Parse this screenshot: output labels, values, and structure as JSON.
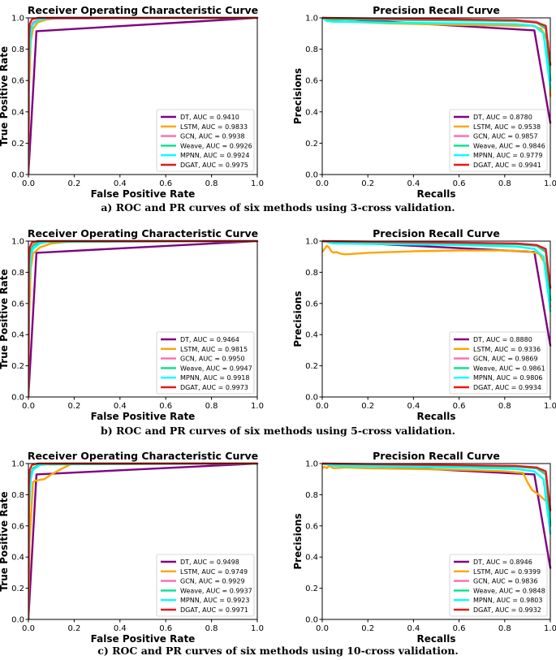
{
  "captions": [
    "a) ROC and PR curves of six methods using 3-cross validation.",
    "b) ROC and PR curves of six methods using 5-cross validation.",
    "c) ROC and PR curves of six methods using 10-cross validation."
  ],
  "colors": {
    "DT": "#800080",
    "LSTM": "#FFA500",
    "GCN": "#FF69B4",
    "Weave": "#00E38C",
    "MPNN": "#00FFFF",
    "DGAT": "#E41A1C"
  },
  "chart_data": [
    {
      "type": "line",
      "title": "Receiver Operating Characteristic Curve",
      "xlabel": "False Positive Rate",
      "ylabel": "True Positive Rate",
      "xlim": [
        0,
        1
      ],
      "ylim": [
        0,
        1
      ],
      "xticks": [
        "0.0",
        "0.2",
        "0.4",
        "0.6",
        "0.8",
        "1.0"
      ],
      "yticks": [
        "0.0",
        "0.2",
        "0.4",
        "0.6",
        "0.8",
        "1.0"
      ],
      "legend_position": "lower-right",
      "series": [
        {
          "name": "DT",
          "legend": "DT, AUC = 0.9410",
          "x": [
            0,
            0.035,
            1
          ],
          "y": [
            0,
            0.915,
            1
          ]
        },
        {
          "name": "LSTM",
          "legend": "LSTM, AUC = 0.9833",
          "x": [
            0,
            0.003,
            0.01,
            0.02,
            0.04,
            0.08,
            0.15,
            1
          ],
          "y": [
            0,
            0.55,
            0.85,
            0.93,
            0.97,
            0.99,
            1.0,
            1.0
          ]
        },
        {
          "name": "GCN",
          "legend": "GCN, AUC = 0.9938",
          "x": [
            0,
            0.003,
            0.01,
            0.02,
            0.05,
            1
          ],
          "y": [
            0,
            0.75,
            0.93,
            0.97,
            0.995,
            1.0
          ]
        },
        {
          "name": "Weave",
          "legend": "Weave, AUC = 0.9926",
          "x": [
            0,
            0.003,
            0.01,
            0.02,
            0.05,
            0.1,
            1
          ],
          "y": [
            0,
            0.7,
            0.92,
            0.96,
            0.99,
            1.0,
            1.0
          ]
        },
        {
          "name": "MPNN",
          "legend": "MPNN, AUC = 0.9924",
          "x": [
            0,
            0.003,
            0.01,
            0.02,
            0.05,
            0.1,
            1
          ],
          "y": [
            0,
            0.7,
            0.9,
            0.96,
            0.99,
            1.0,
            1.0
          ]
        },
        {
          "name": "DGAT",
          "legend": "DGAT, AUC = 0.9975",
          "x": [
            0,
            0.002,
            0.006,
            0.015,
            0.04,
            1
          ],
          "y": [
            0,
            0.85,
            0.96,
            0.99,
            1.0,
            1.0
          ]
        }
      ]
    },
    {
      "type": "line",
      "title": "Precision Recall Curve",
      "xlabel": "Recalls",
      "ylabel": "Precisions",
      "xlim": [
        0,
        1
      ],
      "ylim": [
        0,
        1
      ],
      "xticks": [
        "0.0",
        "0.2",
        "0.4",
        "0.6",
        "0.8",
        "1.0"
      ],
      "yticks": [
        "0.0",
        "0.2",
        "0.4",
        "0.6",
        "0.8",
        "1.0"
      ],
      "legend_position": "lower-right",
      "series": [
        {
          "name": "DT",
          "legend": "DT, AUC = 0.8780",
          "x": [
            0,
            0.93,
            1.0
          ],
          "y": [
            1.0,
            0.92,
            0.33
          ]
        },
        {
          "name": "LSTM",
          "legend": "LSTM, AUC = 0.9538",
          "x": [
            0,
            0.02,
            0.05,
            0.1,
            0.3,
            0.6,
            0.85,
            0.92,
            0.96,
            0.99,
            1.0
          ],
          "y": [
            1.0,
            0.985,
            0.98,
            0.975,
            0.965,
            0.955,
            0.95,
            0.95,
            0.93,
            0.85,
            0.5
          ]
        },
        {
          "name": "GCN",
          "legend": "GCN, AUC = 0.9857",
          "x": [
            0,
            0.05,
            0.5,
            0.85,
            0.94,
            0.98,
            1.0
          ],
          "y": [
            1.0,
            0.995,
            0.99,
            0.985,
            0.975,
            0.94,
            0.6
          ]
        },
        {
          "name": "Weave",
          "legend": "Weave, AUC = 0.9846",
          "x": [
            0,
            0.05,
            0.5,
            0.85,
            0.94,
            0.98,
            1.0
          ],
          "y": [
            1.0,
            0.99,
            0.985,
            0.98,
            0.97,
            0.93,
            0.6
          ]
        },
        {
          "name": "MPNN",
          "legend": "MPNN, AUC = 0.9779",
          "x": [
            0,
            0.02,
            0.05,
            0.1,
            0.3,
            0.6,
            0.85,
            0.93,
            0.97,
            1.0
          ],
          "y": [
            1.0,
            0.98,
            0.975,
            0.975,
            0.97,
            0.965,
            0.96,
            0.95,
            0.9,
            0.55
          ]
        },
        {
          "name": "DGAT",
          "legend": "DGAT, AUC = 0.9941",
          "x": [
            0,
            0.3,
            0.6,
            0.85,
            0.94,
            0.98,
            1.0
          ],
          "y": [
            1.0,
            0.995,
            0.99,
            0.985,
            0.97,
            0.95,
            0.7
          ]
        }
      ]
    },
    {
      "type": "line",
      "title": "Receiver Operating Characteristic Curve",
      "xlabel": "False Positive Rate",
      "ylabel": "True Positive Rate",
      "xlim": [
        0,
        1
      ],
      "ylim": [
        0,
        1
      ],
      "xticks": [
        "0.0",
        "0.2",
        "0.4",
        "0.6",
        "0.8",
        "1.0"
      ],
      "yticks": [
        "0.0",
        "0.2",
        "0.4",
        "0.6",
        "0.8",
        "1.0"
      ],
      "legend_position": "lower-right",
      "series": [
        {
          "name": "DT",
          "legend": "DT, AUC = 0.9464",
          "x": [
            0,
            0.035,
            1
          ],
          "y": [
            0,
            0.925,
            1
          ]
        },
        {
          "name": "LSTM",
          "legend": "LSTM, AUC = 0.9815",
          "x": [
            0,
            0.003,
            0.01,
            0.02,
            0.05,
            0.1,
            0.2,
            1
          ],
          "y": [
            0,
            0.5,
            0.82,
            0.92,
            0.96,
            0.985,
            1.0,
            1.0
          ]
        },
        {
          "name": "GCN",
          "legend": "GCN, AUC = 0.9950",
          "x": [
            0,
            0.003,
            0.01,
            0.02,
            0.05,
            1
          ],
          "y": [
            0,
            0.78,
            0.94,
            0.975,
            0.997,
            1.0
          ]
        },
        {
          "name": "Weave",
          "legend": "Weave, AUC = 0.9947",
          "x": [
            0,
            0.003,
            0.01,
            0.02,
            0.05,
            1
          ],
          "y": [
            0,
            0.78,
            0.93,
            0.97,
            0.995,
            1.0
          ]
        },
        {
          "name": "MPNN",
          "legend": "MPNN, AUC = 0.9918",
          "x": [
            0,
            0.003,
            0.01,
            0.02,
            0.05,
            0.1,
            1
          ],
          "y": [
            0,
            0.7,
            0.9,
            0.95,
            0.985,
            1.0,
            1.0
          ]
        },
        {
          "name": "DGAT",
          "legend": "DGAT, AUC = 0.9973",
          "x": [
            0,
            0.002,
            0.006,
            0.015,
            0.04,
            1
          ],
          "y": [
            0,
            0.85,
            0.96,
            0.99,
            1.0,
            1.0
          ]
        }
      ]
    },
    {
      "type": "line",
      "title": "Precision Recall Curve",
      "xlabel": "Recalls",
      "ylabel": "Precisions",
      "xlim": [
        0,
        1
      ],
      "ylim": [
        0,
        1
      ],
      "xticks": [
        "0.0",
        "0.2",
        "0.4",
        "0.6",
        "0.8",
        "1.0"
      ],
      "yticks": [
        "0.0",
        "0.2",
        "0.4",
        "0.6",
        "0.8",
        "1.0"
      ],
      "legend_position": "lower-right",
      "series": [
        {
          "name": "DT",
          "legend": "DT, AUC = 0.8880",
          "x": [
            0,
            0.93,
            1.0
          ],
          "y": [
            1.0,
            0.93,
            0.33
          ]
        },
        {
          "name": "LSTM",
          "legend": "LSTM, AUC = 0.9336",
          "x": [
            0,
            0.01,
            0.02,
            0.03,
            0.04,
            0.05,
            0.06,
            0.08,
            0.1,
            0.15,
            0.2,
            0.4,
            0.6,
            0.8,
            0.9,
            0.95,
            0.98,
            1.0
          ],
          "y": [
            0.93,
            0.95,
            0.97,
            0.96,
            0.935,
            0.925,
            0.93,
            0.92,
            0.915,
            0.92,
            0.925,
            0.935,
            0.94,
            0.94,
            0.935,
            0.92,
            0.85,
            0.58
          ]
        },
        {
          "name": "GCN",
          "legend": "GCN, AUC = 0.9869",
          "x": [
            0,
            0.05,
            0.5,
            0.85,
            0.94,
            0.98,
            1.0
          ],
          "y": [
            1.0,
            0.995,
            0.99,
            0.985,
            0.975,
            0.94,
            0.62
          ]
        },
        {
          "name": "Weave",
          "legend": "Weave, AUC = 0.9861",
          "x": [
            0,
            0.05,
            0.5,
            0.85,
            0.94,
            0.98,
            1.0
          ],
          "y": [
            1.0,
            0.99,
            0.985,
            0.98,
            0.97,
            0.93,
            0.62
          ]
        },
        {
          "name": "MPNN",
          "legend": "MPNN, AUC = 0.9806",
          "x": [
            0,
            0.05,
            0.3,
            0.6,
            0.85,
            0.93,
            0.97,
            1.0
          ],
          "y": [
            1.0,
            0.985,
            0.98,
            0.975,
            0.965,
            0.95,
            0.9,
            0.55
          ]
        },
        {
          "name": "DGAT",
          "legend": "DGAT, AUC = 0.9934",
          "x": [
            0,
            0.3,
            0.6,
            0.85,
            0.94,
            0.98,
            1.0
          ],
          "y": [
            1.0,
            0.995,
            0.99,
            0.985,
            0.975,
            0.95,
            0.7
          ]
        }
      ]
    },
    {
      "type": "line",
      "title": "Receiver Operating Characteristic Curve",
      "xlabel": "False Positive Rate",
      "ylabel": "True Positive Rate",
      "xlim": [
        0,
        1
      ],
      "ylim": [
        0,
        1
      ],
      "xticks": [
        "0.0",
        "0.2",
        "0.4",
        "0.6",
        "0.8",
        "1.0"
      ],
      "yticks": [
        "0.0",
        "0.2",
        "0.4",
        "0.6",
        "0.8",
        "1.0"
      ],
      "legend_position": "lower-right",
      "series": [
        {
          "name": "DT",
          "legend": "DT, AUC = 0.9498",
          "x": [
            0,
            0.035,
            1
          ],
          "y": [
            0,
            0.93,
            1
          ]
        },
        {
          "name": "LSTM",
          "legend": "LSTM, AUC = 0.9749",
          "x": [
            0,
            0.005,
            0.02,
            0.03,
            0.07,
            0.1,
            0.15,
            0.19,
            1
          ],
          "y": [
            0,
            0.5,
            0.88,
            0.89,
            0.9,
            0.93,
            0.97,
            1.0,
            1.0
          ]
        },
        {
          "name": "GCN",
          "legend": "GCN, AUC = 0.9929",
          "x": [
            0,
            0.003,
            0.01,
            0.02,
            0.05,
            1
          ],
          "y": [
            0,
            0.75,
            0.93,
            0.97,
            0.995,
            1.0
          ]
        },
        {
          "name": "Weave",
          "legend": "Weave, AUC = 0.9937",
          "x": [
            0,
            0.003,
            0.01,
            0.02,
            0.05,
            1
          ],
          "y": [
            0,
            0.75,
            0.93,
            0.97,
            0.995,
            1.0
          ]
        },
        {
          "name": "MPNN",
          "legend": "MPNN, AUC = 0.9923",
          "x": [
            0,
            0.003,
            0.01,
            0.02,
            0.05,
            0.1,
            1
          ],
          "y": [
            0,
            0.7,
            0.9,
            0.96,
            0.99,
            1.0,
            1.0
          ]
        },
        {
          "name": "DGAT",
          "legend": "DGAT, AUC = 0.9971",
          "x": [
            0,
            0.002,
            0.006,
            0.015,
            0.04,
            1
          ],
          "y": [
            0,
            0.85,
            0.96,
            0.99,
            1.0,
            1.0
          ]
        }
      ]
    },
    {
      "type": "line",
      "title": "Precision Recall Curve",
      "xlabel": "Recalls",
      "ylabel": "Precisions",
      "xlim": [
        0,
        1
      ],
      "ylim": [
        0,
        1
      ],
      "xticks": [
        "0.0",
        "0.2",
        "0.4",
        "0.6",
        "0.8",
        "1.0"
      ],
      "yticks": [
        "0.0",
        "0.2",
        "0.4",
        "0.6",
        "0.8",
        "1.0"
      ],
      "legend_position": "lower-right",
      "series": [
        {
          "name": "DT",
          "legend": "DT, AUC = 0.8946",
          "x": [
            0,
            0.93,
            1.0
          ],
          "y": [
            1.0,
            0.93,
            0.33
          ]
        },
        {
          "name": "LSTM",
          "legend": "LSTM, AUC = 0.9399",
          "x": [
            0,
            0.01,
            0.02,
            0.03,
            0.05,
            0.1,
            0.2,
            0.4,
            0.6,
            0.8,
            0.88,
            0.9,
            0.92,
            0.95,
            0.98,
            1.0
          ],
          "y": [
            0.97,
            0.98,
            0.97,
            0.985,
            0.97,
            0.975,
            0.97,
            0.965,
            0.96,
            0.95,
            0.94,
            0.88,
            0.83,
            0.8,
            0.76,
            0.73
          ]
        },
        {
          "name": "GCN",
          "legend": "GCN, AUC = 0.9836",
          "x": [
            0,
            0.05,
            0.5,
            0.85,
            0.94,
            0.98,
            1.0
          ],
          "y": [
            1.0,
            0.99,
            0.985,
            0.98,
            0.97,
            0.93,
            0.6
          ]
        },
        {
          "name": "Weave",
          "legend": "Weave, AUC = 0.9848",
          "x": [
            0,
            0.05,
            0.5,
            0.85,
            0.94,
            0.98,
            1.0
          ],
          "y": [
            1.0,
            0.99,
            0.985,
            0.98,
            0.97,
            0.93,
            0.62
          ]
        },
        {
          "name": "MPNN",
          "legend": "MPNN, AUC = 0.9803",
          "x": [
            0,
            0.05,
            0.3,
            0.6,
            0.85,
            0.93,
            0.97,
            1.0
          ],
          "y": [
            1.0,
            0.985,
            0.98,
            0.975,
            0.965,
            0.95,
            0.9,
            0.55
          ]
        },
        {
          "name": "DGAT",
          "legend": "DGAT, AUC = 0.9932",
          "x": [
            0,
            0.3,
            0.6,
            0.85,
            0.94,
            0.98,
            1.0
          ],
          "y": [
            1.0,
            0.995,
            0.99,
            0.985,
            0.975,
            0.95,
            0.7
          ]
        }
      ]
    }
  ]
}
